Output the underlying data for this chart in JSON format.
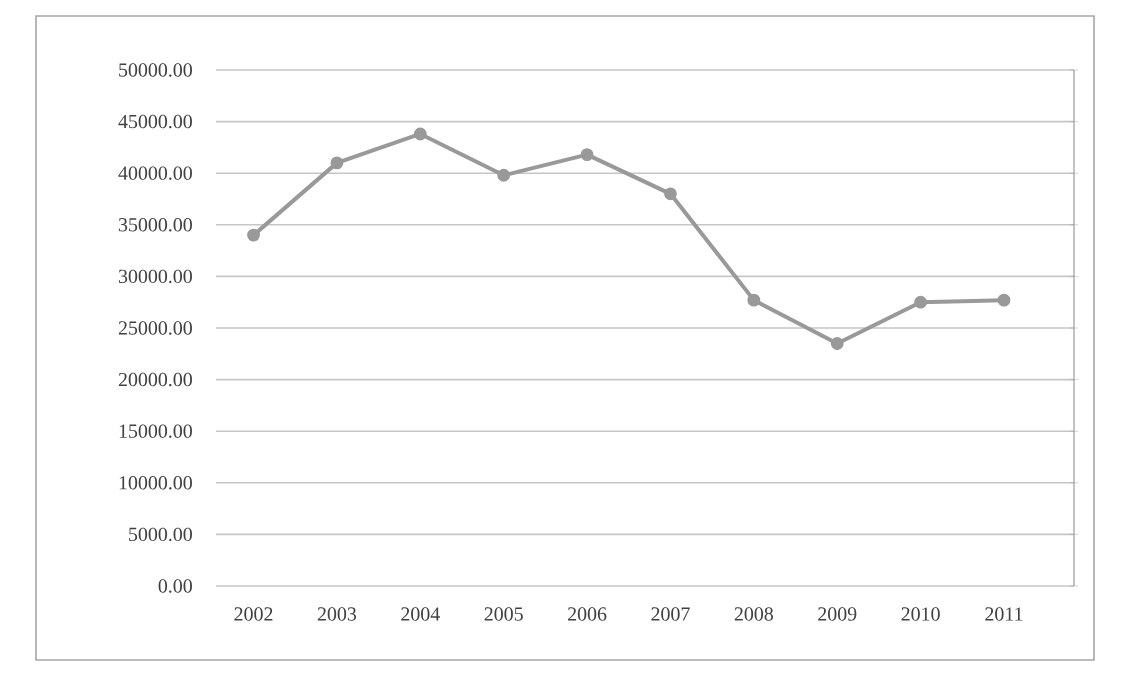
{
  "chart_data": {
    "type": "line",
    "categories": [
      "2002",
      "2003",
      "2004",
      "2005",
      "2006",
      "2007",
      "2008",
      "2009",
      "2010",
      "2011"
    ],
    "values": [
      34000,
      41000,
      43800,
      39800,
      41800,
      38000,
      27700,
      23500,
      27500,
      27700
    ],
    "color": "#999999",
    "marker": "circle",
    "line_style": "solid",
    "grid": "y",
    "ylim": [
      0,
      50000
    ],
    "yticks": [
      {
        "value": 0,
        "label": "0.00"
      },
      {
        "value": 5000,
        "label": "5000.00"
      },
      {
        "value": 10000,
        "label": "10000.00"
      },
      {
        "value": 15000,
        "label": "15000.00"
      },
      {
        "value": 20000,
        "label": "20000.00"
      },
      {
        "value": 25000,
        "label": "25000.00"
      },
      {
        "value": 30000,
        "label": "30000.00"
      },
      {
        "value": 35000,
        "label": "35000.00"
      },
      {
        "value": 40000,
        "label": "40000.00"
      },
      {
        "value": 45000,
        "label": "45000.00"
      },
      {
        "value": 50000,
        "label": "50000.00"
      }
    ]
  }
}
